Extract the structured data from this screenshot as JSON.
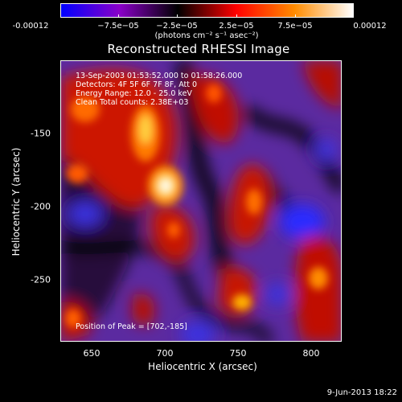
{
  "colorbar": {
    "tick_labels": [
      "-0.00012",
      "−7.5e−05",
      "−2.5e−05",
      "2.5e−05",
      "7.5e−05",
      "0.00012"
    ],
    "unit": "(photons cm⁻² s⁻¹ asec⁻²)",
    "colors": [
      "#0000ff",
      "#8a00c8",
      "#000000",
      "#ff0000",
      "#ff8c00",
      "#ffffff"
    ]
  },
  "title": "Reconstructed RHESSI Image",
  "info": {
    "time_range": "13-Sep-2003 01:53:52.000 to 01:58:26.000",
    "detectors": "Detectors: 4F 5F 6F 7F 8F, Att 0",
    "energy": "Energy Range: 12.0 - 25.0 keV",
    "clean": "Clean      Total counts: 2.38E+03",
    "peak": "Position of Peak = [702,-185]"
  },
  "axes": {
    "x_label": "Heliocentric X (arcsec)",
    "y_label": "Heliocentric Y (arcsec)",
    "x_ticks": [
      "650",
      "700",
      "750",
      "800"
    ],
    "y_ticks": [
      "-150",
      "-200",
      "-250"
    ]
  },
  "footer": "9-Jun-2013 18:22"
}
